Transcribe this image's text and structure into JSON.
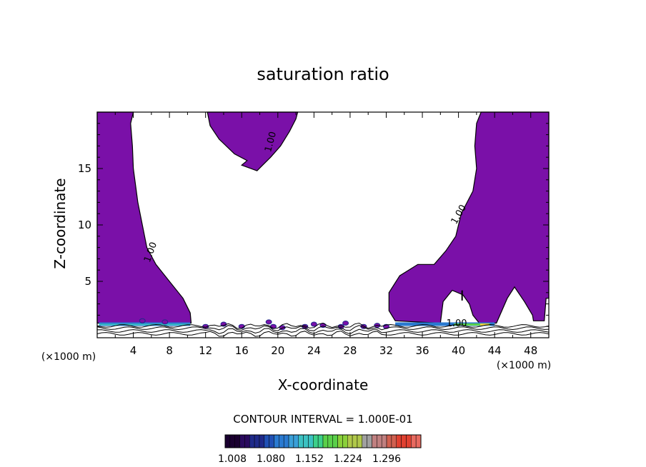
{
  "chart_data": {
    "type": "contour",
    "title": "saturation ratio",
    "xlabel": "X-coordinate",
    "ylabel": "Z-coordinate",
    "x_unit_left": "(×1000 m)",
    "x_unit_right": "(×1000 m)",
    "xlim": [
      0,
      50
    ],
    "ylim": [
      0,
      20
    ],
    "x_ticks": [
      4,
      8,
      12,
      16,
      20,
      24,
      28,
      32,
      36,
      40,
      44,
      48
    ],
    "y_ticks": [
      5,
      10,
      15
    ],
    "contour_labels": [
      {
        "text": "1.00",
        "x": 19.5,
        "y": 17.3
      },
      {
        "text": "1.00",
        "x": 6.2,
        "y": 7.5
      },
      {
        "text": "1.00",
        "x": 40.3,
        "y": 10.8
      },
      {
        "text": "1.00",
        "x": 39.8,
        "y": 1.0
      }
    ],
    "regions": [
      {
        "name": "left",
        "fill": "#7a10a8",
        "poly": [
          [
            0,
            20
          ],
          [
            4,
            20
          ],
          [
            3.7,
            19
          ],
          [
            3.9,
            17
          ],
          [
            4.0,
            15
          ],
          [
            4.5,
            12
          ],
          [
            5.0,
            10
          ],
          [
            5.5,
            8
          ],
          [
            6.5,
            6.5
          ],
          [
            8,
            5
          ],
          [
            9.5,
            3.5
          ],
          [
            10.3,
            2.2
          ],
          [
            10.4,
            1.3
          ],
          [
            0,
            1.3
          ]
        ]
      },
      {
        "name": "top-center",
        "fill": "#7a10a8",
        "poly": [
          [
            12.2,
            20
          ],
          [
            22.2,
            20
          ],
          [
            22.0,
            19.4
          ],
          [
            21.3,
            18.3
          ],
          [
            20.3,
            17
          ],
          [
            19.2,
            16.0
          ],
          [
            18.2,
            15.2
          ],
          [
            17.7,
            14.8
          ],
          [
            16.0,
            15.3
          ],
          [
            16.6,
            15.7
          ],
          [
            15.2,
            16.3
          ],
          [
            13.5,
            17.6
          ],
          [
            12.5,
            18.8
          ]
        ]
      },
      {
        "name": "right",
        "fill": "#7a10a8",
        "poly": [
          [
            50,
            20
          ],
          [
            42.5,
            20
          ],
          [
            42.0,
            19
          ],
          [
            41.8,
            17
          ],
          [
            42.0,
            15
          ],
          [
            41.6,
            13
          ],
          [
            40.3,
            11
          ],
          [
            39.7,
            9
          ],
          [
            38.6,
            7.7
          ],
          [
            37.3,
            6.5
          ],
          [
            35.5,
            6.5
          ],
          [
            33.5,
            5.5
          ],
          [
            32.3,
            4.0
          ],
          [
            32.3,
            2.4
          ],
          [
            33.0,
            1.5
          ],
          [
            38.0,
            1.3
          ],
          [
            38.3,
            3.2
          ],
          [
            39.3,
            4.2
          ],
          [
            40.5,
            3.8
          ],
          [
            41.2,
            3.0
          ],
          [
            41.6,
            2.0
          ],
          [
            42.3,
            1.3
          ],
          [
            44.2,
            1.3
          ],
          [
            45.4,
            3.5
          ],
          [
            46.2,
            4.5
          ],
          [
            47.3,
            3.2
          ],
          [
            48.2,
            2.0
          ],
          [
            48.3,
            1.5
          ],
          [
            49.5,
            1.5
          ],
          [
            49.7,
            3.5
          ],
          [
            50,
            3.5
          ]
        ]
      }
    ],
    "colorbar": {
      "title": "CONTOUR INTERVAL = 1.000E-01",
      "tick_labels": [
        "1.008",
        "1.080",
        "1.152",
        "1.224",
        "1.296"
      ],
      "colors": [
        "#1a0030",
        "#2a0a5e",
        "#1f2a8a",
        "#2050b4",
        "#2a7ad0",
        "#3aa0d8",
        "#3cc2c2",
        "#3cd08a",
        "#5ad04a",
        "#8ad03a",
        "#b0c84a",
        "#a0a0a0",
        "#c08080",
        "#d06050",
        "#e04030",
        "#e86a60"
      ]
    }
  }
}
